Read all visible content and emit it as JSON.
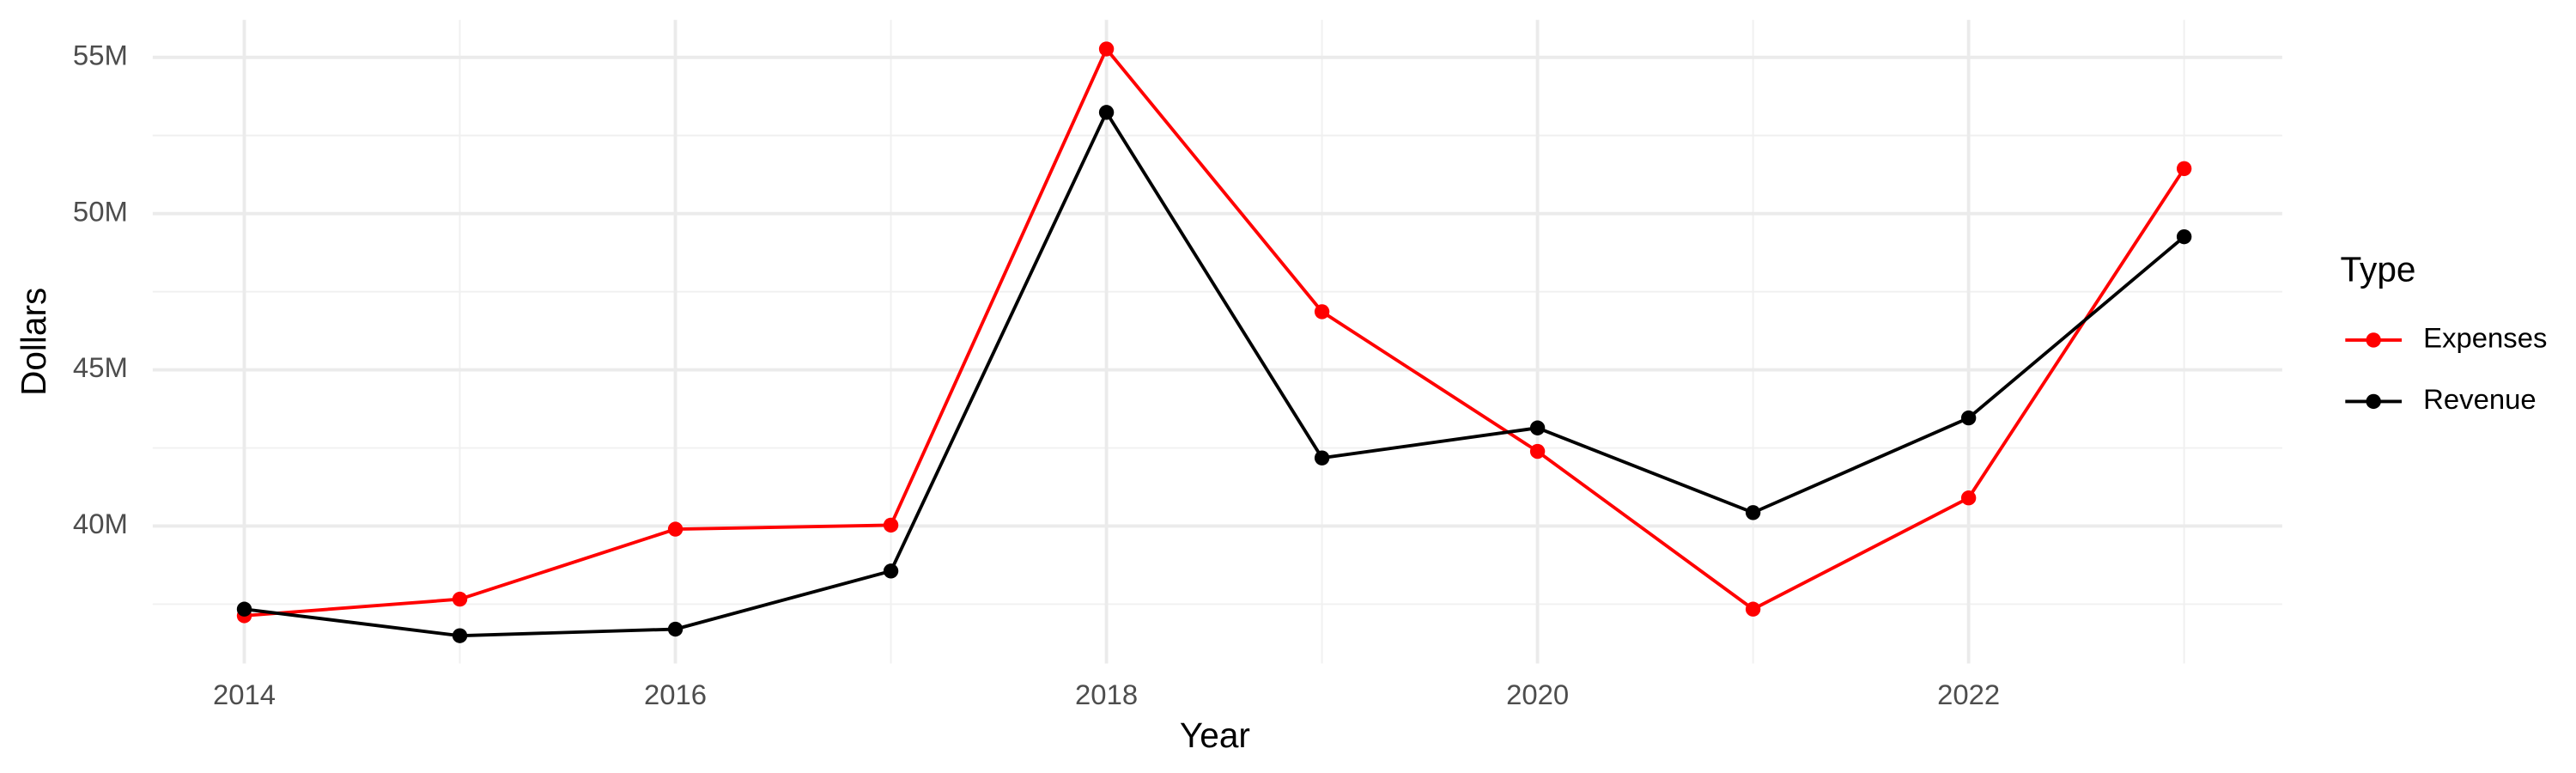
{
  "chart_data": {
    "type": "line",
    "x_label": "Year",
    "y_label": "Dollars",
    "legend_title": "Type",
    "x": [
      2014,
      2015,
      2016,
      2017,
      2018,
      2019,
      2020,
      2021,
      2022,
      2023
    ],
    "series": [
      {
        "name": "Expenses",
        "color": "#ff0000",
        "values": [
          37130000,
          37660000,
          39900000,
          40030000,
          55270000,
          46860000,
          42390000,
          37340000,
          40900000,
          51440000
        ]
      },
      {
        "name": "Revenue",
        "color": "#000000",
        "values": [
          37340000,
          36490000,
          36700000,
          38560000,
          53240000,
          42180000,
          43140000,
          40430000,
          43460000,
          49260000
        ]
      }
    ],
    "xlim": [
      2013.575,
      2023.455
    ],
    "xticks": [
      2014,
      2016,
      2018,
      2020,
      2022
    ],
    "ylim": [
      35600000,
      56200000
    ],
    "yticks": [
      {
        "value": 40000000,
        "label": "40M"
      },
      {
        "value": 45000000,
        "label": "45M"
      },
      {
        "value": 50000000,
        "label": "50M"
      },
      {
        "value": 55000000,
        "label": "55M"
      }
    ],
    "grid": true,
    "legend_position": "right"
  }
}
